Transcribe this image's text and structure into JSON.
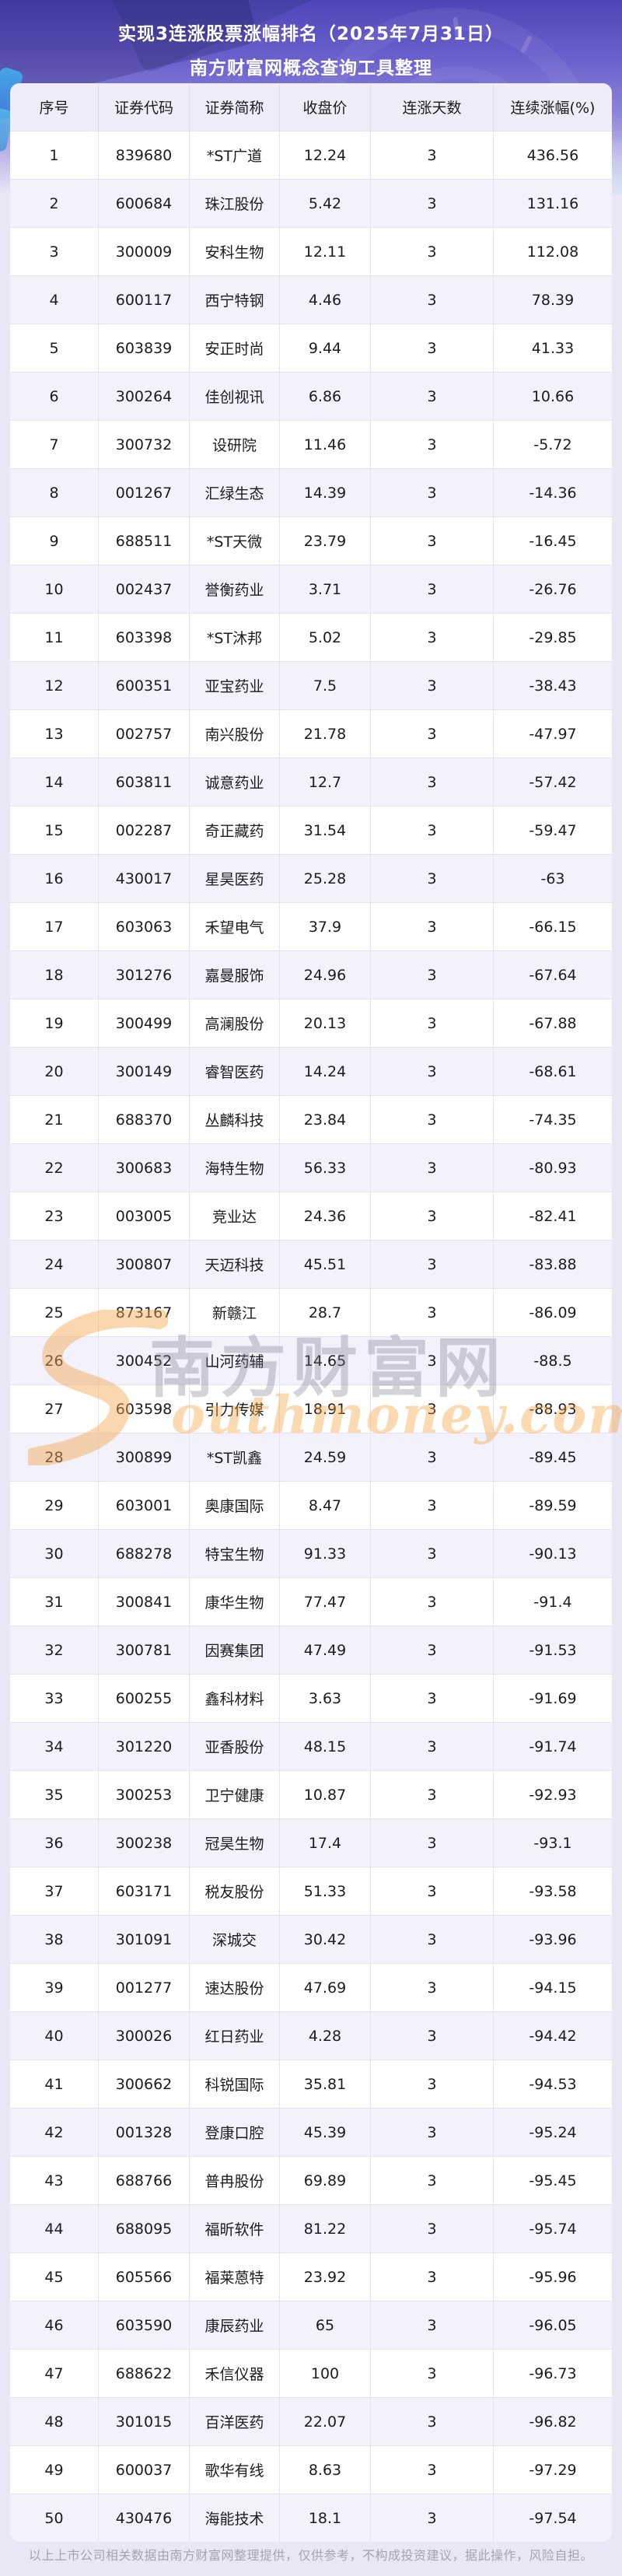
{
  "title": {
    "line1": "实现3连涨股票涨幅排名（2025年7月31日）",
    "line2": "南方财富网概念查询工具整理"
  },
  "table": {
    "columns": [
      "序号",
      "证券代码",
      "证券简称",
      "收盘价",
      "连涨天数",
      "连续涨幅(%)"
    ],
    "rows": [
      [
        "1",
        "839680",
        "*ST广道",
        "12.24",
        "3",
        "436.56"
      ],
      [
        "2",
        "600684",
        "珠江股份",
        "5.42",
        "3",
        "131.16"
      ],
      [
        "3",
        "300009",
        "安科生物",
        "12.11",
        "3",
        "112.08"
      ],
      [
        "4",
        "600117",
        "西宁特钢",
        "4.46",
        "3",
        "78.39"
      ],
      [
        "5",
        "603839",
        "安正时尚",
        "9.44",
        "3",
        "41.33"
      ],
      [
        "6",
        "300264",
        "佳创视讯",
        "6.86",
        "3",
        "10.66"
      ],
      [
        "7",
        "300732",
        "设研院",
        "11.46",
        "3",
        "-5.72"
      ],
      [
        "8",
        "001267",
        "汇绿生态",
        "14.39",
        "3",
        "-14.36"
      ],
      [
        "9",
        "688511",
        "*ST天微",
        "23.79",
        "3",
        "-16.45"
      ],
      [
        "10",
        "002437",
        "誉衡药业",
        "3.71",
        "3",
        "-26.76"
      ],
      [
        "11",
        "603398",
        "*ST沐邦",
        "5.02",
        "3",
        "-29.85"
      ],
      [
        "12",
        "600351",
        "亚宝药业",
        "7.5",
        "3",
        "-38.43"
      ],
      [
        "13",
        "002757",
        "南兴股份",
        "21.78",
        "3",
        "-47.97"
      ],
      [
        "14",
        "603811",
        "诚意药业",
        "12.7",
        "3",
        "-57.42"
      ],
      [
        "15",
        "002287",
        "奇正藏药",
        "31.54",
        "3",
        "-59.47"
      ],
      [
        "16",
        "430017",
        "星昊医药",
        "25.28",
        "3",
        "-63"
      ],
      [
        "17",
        "603063",
        "禾望电气",
        "37.9",
        "3",
        "-66.15"
      ],
      [
        "18",
        "301276",
        "嘉曼服饰",
        "24.96",
        "3",
        "-67.64"
      ],
      [
        "19",
        "300499",
        "高澜股份",
        "20.13",
        "3",
        "-67.88"
      ],
      [
        "20",
        "300149",
        "睿智医药",
        "14.24",
        "3",
        "-68.61"
      ],
      [
        "21",
        "688370",
        "丛麟科技",
        "23.84",
        "3",
        "-74.35"
      ],
      [
        "22",
        "300683",
        "海特生物",
        "56.33",
        "3",
        "-80.93"
      ],
      [
        "23",
        "003005",
        "竞业达",
        "24.36",
        "3",
        "-82.41"
      ],
      [
        "24",
        "300807",
        "天迈科技",
        "45.51",
        "3",
        "-83.88"
      ],
      [
        "25",
        "873167",
        "新赣江",
        "28.7",
        "3",
        "-86.09"
      ],
      [
        "26",
        "300452",
        "山河药辅",
        "14.65",
        "3",
        "-88.5"
      ],
      [
        "27",
        "603598",
        "引力传媒",
        "18.91",
        "3",
        "-88.93"
      ],
      [
        "28",
        "300899",
        "*ST凯鑫",
        "24.59",
        "3",
        "-89.45"
      ],
      [
        "29",
        "603001",
        "奥康国际",
        "8.47",
        "3",
        "-89.59"
      ],
      [
        "30",
        "688278",
        "特宝生物",
        "91.33",
        "3",
        "-90.13"
      ],
      [
        "31",
        "300841",
        "康华生物",
        "77.47",
        "3",
        "-91.4"
      ],
      [
        "32",
        "300781",
        "因赛集团",
        "47.49",
        "3",
        "-91.53"
      ],
      [
        "33",
        "600255",
        "鑫科材料",
        "3.63",
        "3",
        "-91.69"
      ],
      [
        "34",
        "301220",
        "亚香股份",
        "48.15",
        "3",
        "-91.74"
      ],
      [
        "35",
        "300253",
        "卫宁健康",
        "10.87",
        "3",
        "-92.93"
      ],
      [
        "36",
        "300238",
        "冠昊生物",
        "17.4",
        "3",
        "-93.1"
      ],
      [
        "37",
        "603171",
        "税友股份",
        "51.33",
        "3",
        "-93.58"
      ],
      [
        "38",
        "301091",
        "深城交",
        "30.42",
        "3",
        "-93.96"
      ],
      [
        "39",
        "001277",
        "速达股份",
        "47.69",
        "3",
        "-94.15"
      ],
      [
        "40",
        "300026",
        "红日药业",
        "4.28",
        "3",
        "-94.42"
      ],
      [
        "41",
        "300662",
        "科锐国际",
        "35.81",
        "3",
        "-94.53"
      ],
      [
        "42",
        "001328",
        "登康口腔",
        "45.39",
        "3",
        "-95.24"
      ],
      [
        "43",
        "688766",
        "普冉股份",
        "69.89",
        "3",
        "-95.45"
      ],
      [
        "44",
        "688095",
        "福昕软件",
        "81.22",
        "3",
        "-95.74"
      ],
      [
        "45",
        "605566",
        "福莱蒽特",
        "23.92",
        "3",
        "-95.96"
      ],
      [
        "46",
        "603590",
        "康辰药业",
        "65",
        "3",
        "-96.05"
      ],
      [
        "47",
        "688622",
        "禾信仪器",
        "100",
        "3",
        "-96.73"
      ],
      [
        "48",
        "301015",
        "百洋医药",
        "22.07",
        "3",
        "-96.82"
      ],
      [
        "49",
        "600037",
        "歌华有线",
        "8.63",
        "3",
        "-97.29"
      ],
      [
        "50",
        "430476",
        "海能技术",
        "18.1",
        "3",
        "-97.54"
      ]
    ]
  },
  "watermark": {
    "cn": "南方财富网",
    "en": "outhmoney.com"
  },
  "footer": {
    "disclaimer": "以上上市公司相关数据由南方财富网整理提供，仅供参考，不构成投资建议，据此操作，风险自担。"
  },
  "colors": {
    "banner_purple_top": "#4e46b7",
    "banner_purple_mid": "#8c84da",
    "page_background": "#e9e7f5",
    "row_alt_background": "#f3f1fb",
    "header_background": "#efedf9",
    "table_border": "#e6e2f2",
    "title_text": "#ffffff",
    "cell_text": "#1c1c1e",
    "footer_text": "#a6a3b1",
    "watermark_orange": "#f4a23c",
    "watermark_grey": "#7d788c"
  }
}
